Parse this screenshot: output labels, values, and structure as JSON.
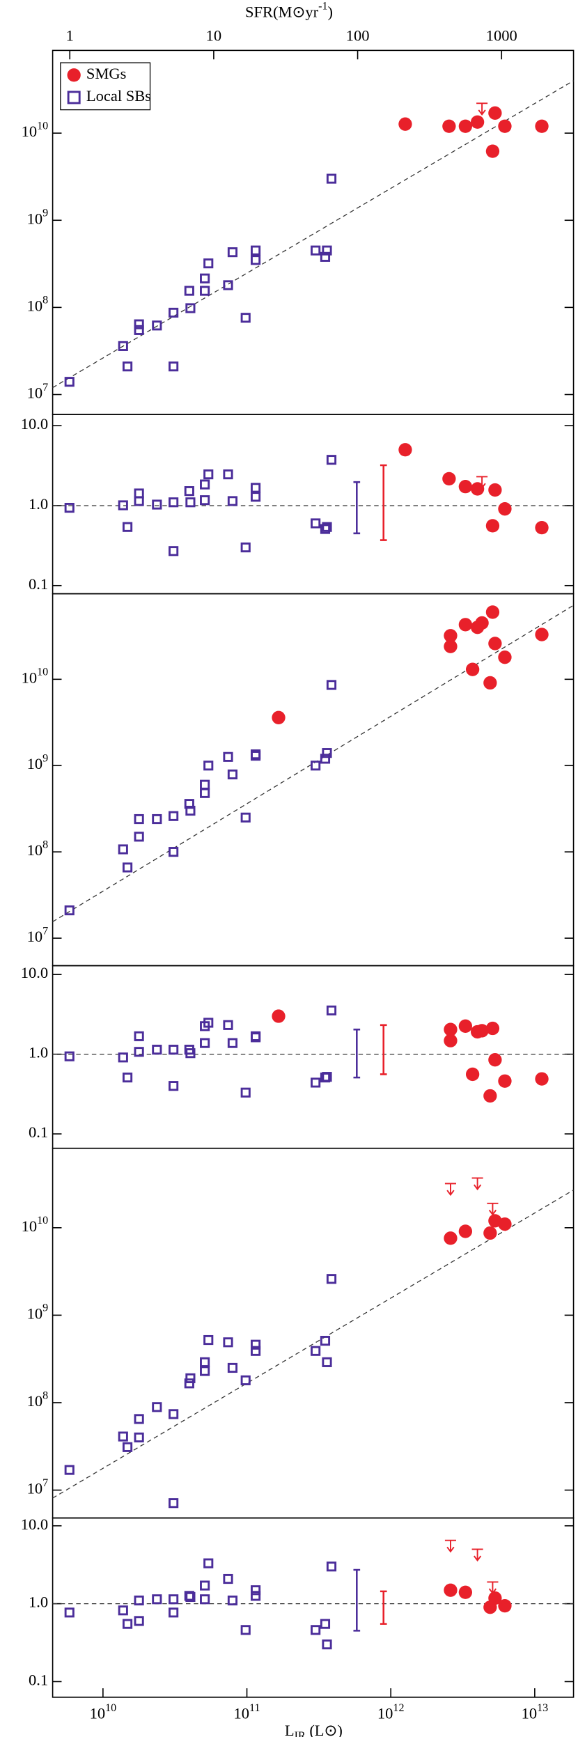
{
  "chart_data": [
    {
      "type": "scatter",
      "xscale": "log",
      "yscale": "log",
      "xlim": [
        4470000000.0,
        18600000000000.0
      ],
      "ylim": [
        5900000.0,
        89000000000.0
      ],
      "x2lim": [
        0.76,
        3162
      ],
      "x2ticks": [
        1,
        10,
        100,
        1000
      ],
      "x2label": {
        "main": "SFR(M⊙yr",
        "sup": "-1",
        "end": ")"
      },
      "yticks": [
        {
          "value": 10000000.0,
          "label": "10",
          "exponent": "7"
        },
        {
          "value": 100000000.0,
          "label": "10",
          "exponent": "8"
        },
        {
          "value": 1000000000.0,
          "label": "10",
          "exponent": "9"
        },
        {
          "value": 10000000000.0,
          "label": "10",
          "exponent": "10"
        }
      ],
      "legend": "upper left",
      "series": [
        {
          "name": "SMGs",
          "color": "#e8202a",
          "marker": "circle",
          "x": [
            1260000000000.0,
            2540000000000.0,
            3300000000000.0,
            4000000000000.0,
            5300000000000.0,
            5100000000000.0,
            6200000000000.0,
            11200000000000.0
          ],
          "values": [
            12700000000.0,
            12000000000.0,
            12000000000.0,
            13400000000.0,
            17000000000.0,
            6200000000.0,
            12000000000.0,
            12000000000.0
          ]
        },
        {
          "name": "Local SBs",
          "color": "#4b2d9a",
          "marker": "square",
          "x": [
            5850000000.0,
            13800000000.0,
            14800000000.0,
            17800000000.0,
            17800000000.0,
            23700000000.0,
            30900000000.0,
            30900000000.0,
            39800000000.0,
            40500000000.0,
            51000000000.0,
            51000000000.0,
            54000000000.0,
            74000000000.0,
            79500000000.0,
            98000000000.0,
            115000000000.0,
            115000000000.0,
            300000000000.0,
            350000000000.0,
            360000000000.0,
            387000000000.0
          ],
          "values": [
            14000000.0,
            36000000.0,
            21000000.0,
            55000000.0,
            64000000.0,
            62000000.0,
            87000000.0,
            21000000.0,
            155000000.0,
            98000000.0,
            155000000.0,
            215000000.0,
            320000000.0,
            180000000.0,
            430000000.0,
            76000000.0,
            450000000.0,
            350000000.0,
            450000000.0,
            380000000.0,
            450000000.0,
            3000000000.0
          ]
        }
      ],
      "upper_limits": {
        "color": "#e8202a",
        "x": [
          4300000000000.0
        ],
        "values": [
          22000000000.0
        ]
      },
      "fit": {
        "x": [
          4470000000.0,
          18600000000000.0
        ],
        "values": [
          12000000.0,
          40000000000.0
        ]
      }
    },
    {
      "type": "scatter",
      "xscale": "log",
      "yscale": "log",
      "xlim": [
        4470000000.0,
        18600000000000.0
      ],
      "ylim": [
        0.079,
        13.8
      ],
      "yticks": [
        {
          "value": 10,
          "label": "10.0"
        },
        {
          "value": 1,
          "label": "1.0"
        },
        0.1
      ],
      "hline": 1,
      "series": [
        {
          "color": "#e8202a",
          "marker": "circle",
          "x": [
            1260000000000.0,
            2540000000000.0,
            3300000000000.0,
            4000000000000.0,
            5300000000000.0,
            5100000000000.0,
            6200000000000.0,
            11200000000000.0
          ],
          "values": [
            5.0,
            2.17,
            1.73,
            1.62,
            1.57,
            0.56,
            0.91,
            0.53
          ]
        },
        {
          "color": "#4b2d9a",
          "marker": "square",
          "x": [
            5850000000.0,
            13800000000.0,
            14800000000.0,
            17800000000.0,
            17800000000.0,
            23700000000.0,
            30900000000.0,
            30900000000.0,
            39800000000.0,
            40500000000.0,
            51000000000.0,
            51000000000.0,
            54000000000.0,
            74000000000.0,
            79500000000.0,
            98000000000.0,
            115000000000.0,
            115000000000.0,
            300000000000.0,
            350000000000.0,
            360000000000.0,
            387000000000.0
          ],
          "values": [
            0.94,
            1.01,
            0.54,
            1.14,
            1.42,
            1.03,
            1.1,
            0.27,
            1.52,
            1.1,
            1.84,
            1.17,
            2.46,
            2.46,
            1.14,
            0.3,
            1.67,
            1.29,
            0.6,
            0.51,
            0.54,
            3.74
          ]
        }
      ],
      "upper_limits": {
        "color": "#e8202a",
        "x": [
          4300000000000.0
        ],
        "values": [
          2.3
        ]
      },
      "scatter_bars": [
        {
          "color": "#4b2d9a",
          "x": 580000000000.0,
          "low": 0.45,
          "high": 1.97
        },
        {
          "color": "#e8202a",
          "x": 890000000000.0,
          "low": 0.37,
          "high": 3.2
        }
      ]
    },
    {
      "type": "scatter",
      "xscale": "log",
      "yscale": "log",
      "xlim": [
        4470000000.0,
        18600000000000.0
      ],
      "ylim": [
        4800000.0,
        98000000000.0
      ],
      "yticks": [
        {
          "value": 10000000.0,
          "label": "10",
          "exponent": "7"
        },
        {
          "value": 100000000.0,
          "label": "10",
          "exponent": "8"
        },
        {
          "value": 1000000000.0,
          "label": "10",
          "exponent": "9"
        },
        {
          "value": 10000000000.0,
          "label": "10",
          "exponent": "10"
        }
      ],
      "series": [
        {
          "color": "#e8202a",
          "marker": "circle",
          "x": [
            166000000000.0,
            2600000000000.0,
            2600000000000.0,
            3300000000000.0,
            4000000000000.0,
            4300000000000.0,
            5100000000000.0,
            5300000000000.0,
            3700000000000.0,
            4900000000000.0,
            6200000000000.0,
            11200000000000.0
          ],
          "values": [
            3600000000.0,
            32000000000.0,
            24000000000.0,
            43000000000.0,
            40000000000.0,
            45000000000.0,
            60000000000.0,
            26000000000.0,
            13000000000.0,
            9100000000.0,
            18000000000.0,
            33000000000.0
          ]
        },
        {
          "color": "#4b2d9a",
          "marker": "square",
          "x": [
            5850000000.0,
            13800000000.0,
            14800000000.0,
            17800000000.0,
            17800000000.0,
            23700000000.0,
            30900000000.0,
            30900000000.0,
            39800000000.0,
            40500000000.0,
            51000000000.0,
            51000000000.0,
            54000000000.0,
            74000000000.0,
            79500000000.0,
            98000000000.0,
            115000000000.0,
            115000000000.0,
            300000000000.0,
            350000000000.0,
            360000000000.0,
            387000000000.0
          ],
          "values": [
            21000000.0,
            107000000.0,
            66000000.0,
            240000000.0,
            150000000.0,
            240000000.0,
            100000000.0,
            260000000.0,
            360000000.0,
            300000000.0,
            600000000.0,
            480000000.0,
            1000000000.0,
            1260000000.0,
            790000000.0,
            250000000.0,
            1350000000.0,
            1300000000.0,
            1000000000.0,
            1200000000.0,
            1400000000.0,
            8600000000.0
          ]
        }
      ],
      "fit": {
        "x": [
          4470000000.0,
          18600000000000.0
        ],
        "values": [
          15500000.0,
          72000000000.0
        ]
      }
    },
    {
      "type": "scatter",
      "xscale": "log",
      "yscale": "log",
      "xlim": [
        4470000000.0,
        18600000000000.0
      ],
      "ylim": [
        0.066,
        12.9
      ],
      "yticks": [
        {
          "value": 10,
          "label": "10.0"
        },
        {
          "value": 1,
          "label": "1.0"
        },
        0.1
      ],
      "hline": 1,
      "series": [
        {
          "color": "#e8202a",
          "marker": "circle",
          "x": [
            166000000000.0,
            2600000000000.0,
            2600000000000.0,
            3300000000000.0,
            4000000000000.0,
            4300000000000.0,
            5100000000000.0,
            5300000000000.0,
            3700000000000.0,
            4900000000000.0,
            6200000000000.0,
            11200000000000.0
          ],
          "values": [
            3.0,
            1.48,
            2.04,
            2.25,
            1.91,
            1.97,
            2.11,
            0.85,
            0.56,
            0.3,
            0.46,
            0.49
          ]
        },
        {
          "color": "#4b2d9a",
          "marker": "square",
          "x": [
            5850000000.0,
            13800000000.0,
            14800000000.0,
            17800000000.0,
            17800000000.0,
            23700000000.0,
            30900000000.0,
            30900000000.0,
            39800000000.0,
            40500000000.0,
            51000000000.0,
            51000000000.0,
            54000000000.0,
            74000000000.0,
            79500000000.0,
            98000000000.0,
            115000000000.0,
            115000000000.0,
            300000000000.0,
            350000000000.0,
            360000000000.0,
            387000000000.0
          ],
          "values": [
            0.94,
            0.91,
            0.51,
            1.68,
            1.07,
            1.14,
            1.14,
            0.4,
            1.14,
            1.03,
            1.38,
            2.25,
            2.48,
            2.32,
            1.38,
            0.33,
            1.68,
            1.63,
            0.44,
            0.51,
            0.52,
            3.54
          ]
        }
      ],
      "scatter_bars": [
        {
          "color": "#4b2d9a",
          "x": 580000000000.0,
          "low": 0.51,
          "high": 2.04
        },
        {
          "color": "#e8202a",
          "x": 890000000000.0,
          "low": 0.56,
          "high": 2.32
        }
      ]
    },
    {
      "type": "scatter",
      "xscale": "log",
      "yscale": "log",
      "xlim": [
        4470000000.0,
        18600000000000.0
      ],
      "ylim": [
        4800000.0,
        81000000000.0
      ],
      "yticks": [
        {
          "value": 10000000.0,
          "label": "10",
          "exponent": "7"
        },
        {
          "value": 100000000.0,
          "label": "10",
          "exponent": "8"
        },
        {
          "value": 1000000000.0,
          "label": "10",
          "exponent": "9"
        },
        {
          "value": 10000000000.0,
          "label": "10",
          "exponent": "10"
        }
      ],
      "series": [
        {
          "color": "#e8202a",
          "marker": "circle",
          "x": [
            2600000000000.0,
            3300000000000.0,
            4900000000000.0,
            5300000000000.0,
            6200000000000.0
          ],
          "values": [
            7600000000.0,
            9100000000.0,
            8700000000.0,
            12000000000.0,
            11000000000.0
          ]
        },
        {
          "color": "#4b2d9a",
          "marker": "square",
          "x": [
            5850000000.0,
            13800000000.0,
            14800000000.0,
            17800000000.0,
            17800000000.0,
            23700000000.0,
            30900000000.0,
            30900000000.0,
            39800000000.0,
            40500000000.0,
            51000000000.0,
            51000000000.0,
            54000000000.0,
            74000000000.0,
            79500000000.0,
            98000000000.0,
            115000000000.0,
            115000000000.0,
            300000000000.0,
            350000000000.0,
            360000000000.0,
            387000000000.0
          ],
          "values": [
            17000000.0,
            41000000.0,
            31000000.0,
            65000000.0,
            40000000.0,
            89000000.0,
            74000000.0,
            7100000.0,
            166000000.0,
            190000000.0,
            290000000.0,
            230000000.0,
            520000000.0,
            490000000.0,
            250000000.0,
            180000000.0,
            460000000.0,
            390000000.0,
            390000000.0,
            510000000.0,
            290000000.0,
            2600000000.0
          ]
        }
      ],
      "upper_limits": {
        "color": "#e8202a",
        "x": [
          2600000000000.0,
          4000000000000.0,
          5100000000000.0
        ],
        "values": [
          32000000000.0,
          37000000000.0,
          19000000000.0
        ]
      },
      "fit": {
        "x": [
          4470000000.0,
          18600000000000.0
        ],
        "values": [
          8100000.0,
          27000000000.0
        ]
      }
    },
    {
      "type": "scatter",
      "xscale": "log",
      "yscale": "log",
      "xlim": [
        4470000000.0,
        18600000000000.0
      ],
      "ylim": [
        0.063,
        12.6
      ],
      "xticks": [
        {
          "value": 10000000000.0,
          "label": "10",
          "exponent": "10"
        },
        {
          "value": 100000000000.0,
          "label": "10",
          "exponent": "11"
        },
        {
          "value": 1000000000000.0,
          "label": "10",
          "exponent": "12"
        },
        {
          "value": 10000000000000.0,
          "label": "10",
          "exponent": "13"
        }
      ],
      "xlabel": {
        "main": "L",
        "sub": "IR",
        "end": " (L⊙)"
      },
      "yticks": [
        {
          "value": 10,
          "label": "10.0"
        },
        {
          "value": 1,
          "label": "1.0"
        },
        0.1
      ],
      "hline": 1,
      "series": [
        {
          "color": "#e8202a",
          "marker": "circle",
          "x": [
            2600000000000.0,
            3300000000000.0,
            4900000000000.0,
            5300000000000.0,
            6200000000000.0
          ],
          "values": [
            1.49,
            1.4,
            0.9,
            1.18,
            0.94
          ]
        },
        {
          "color": "#4b2d9a",
          "marker": "square",
          "x": [
            5850000000.0,
            13800000000.0,
            14800000000.0,
            17800000000.0,
            17800000000.0,
            23700000000.0,
            30900000000.0,
            30900000000.0,
            39800000000.0,
            40500000000.0,
            51000000000.0,
            51000000000.0,
            54000000000.0,
            74000000000.0,
            79500000000.0,
            98000000000.0,
            115000000000.0,
            115000000000.0,
            300000000000.0,
            350000000000.0,
            360000000000.0,
            387000000000.0
          ],
          "values": [
            0.77,
            0.82,
            0.55,
            1.1,
            0.6,
            1.14,
            0.77,
            1.14,
            1.26,
            1.22,
            1.71,
            1.14,
            3.3,
            2.08,
            1.1,
            0.46,
            1.49,
            1.26,
            0.46,
            0.55,
            0.3,
            3.0
          ]
        }
      ],
      "upper_limits": {
        "color": "#e8202a",
        "x": [
          2600000000000.0,
          4000000000000.0,
          5100000000000.0
        ],
        "values": [
          6.5,
          5.0,
          1.9
        ]
      },
      "scatter_bars": [
        {
          "color": "#4b2d9a",
          "x": 580000000000.0,
          "low": 0.45,
          "high": 2.72
        },
        {
          "color": "#e8202a",
          "x": 890000000000.0,
          "low": 0.55,
          "high": 1.44
        }
      ]
    }
  ]
}
